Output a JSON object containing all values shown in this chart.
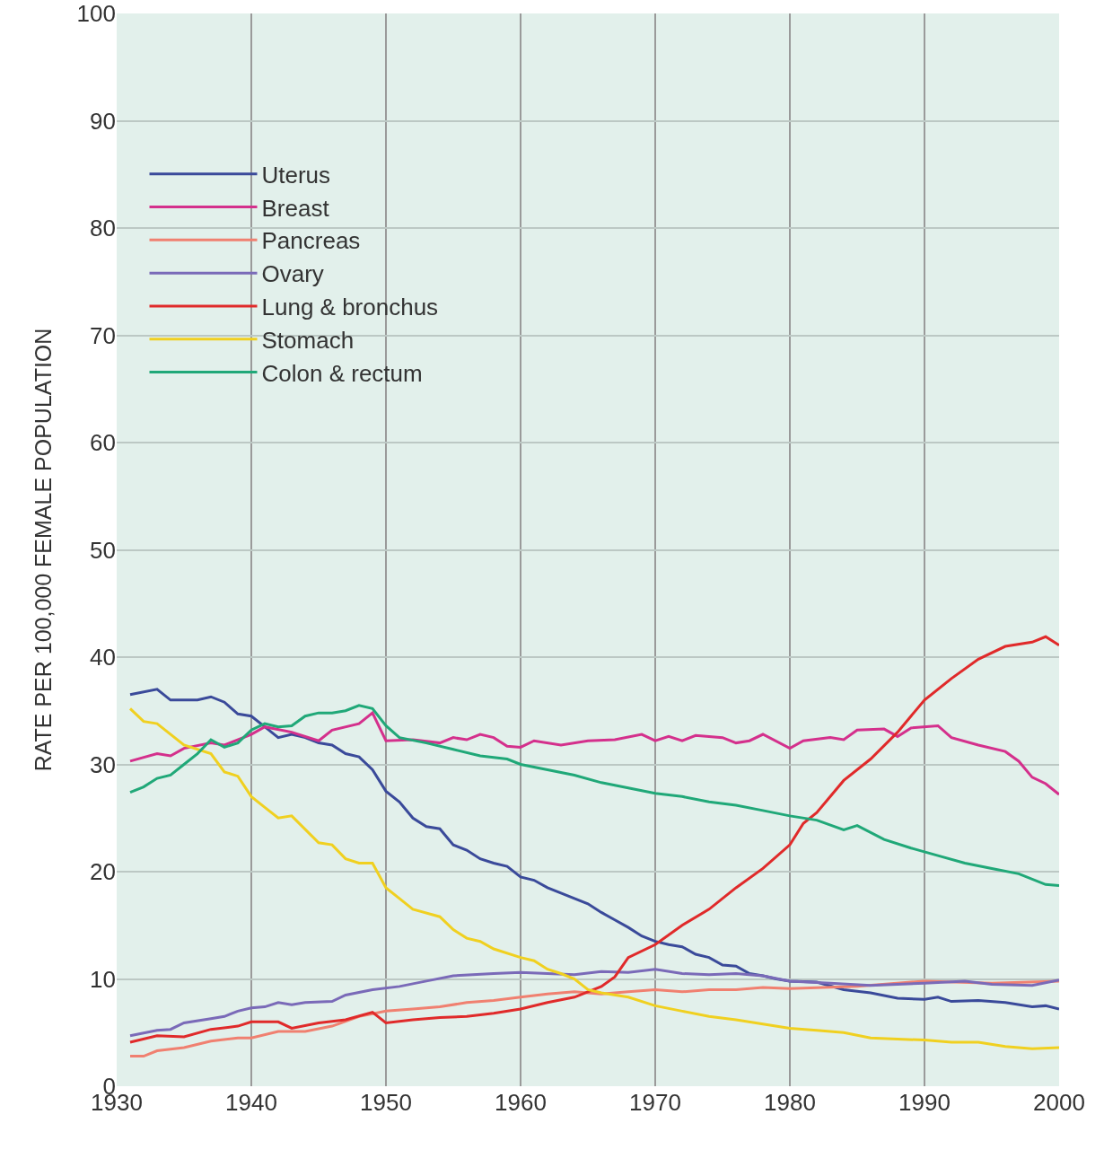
{
  "chart_data": {
    "type": "line",
    "ylabel": "RATE PER 100,000 FEMALE POPULATION",
    "xlim": [
      1930,
      2000
    ],
    "ylim": [
      0,
      100
    ],
    "xticks": [
      1930,
      1940,
      1950,
      1960,
      1970,
      1980,
      1990,
      2000
    ],
    "yticks": [
      0,
      10,
      20,
      30,
      40,
      50,
      60,
      70,
      80,
      90,
      100
    ],
    "grid": true,
    "legend": "top left",
    "marker": "none",
    "line_style": "solid",
    "series": [
      {
        "name": "Uterus",
        "color": "#3a4a9a",
        "x": [
          1931,
          1933,
          1934,
          1936,
          1937,
          1938,
          1939,
          1940,
          1941,
          1942,
          1943,
          1944,
          1945,
          1946,
          1947,
          1948,
          1949,
          1950,
          1951,
          1952,
          1953,
          1954,
          1955,
          1956,
          1957,
          1958,
          1959,
          1960,
          1961,
          1962,
          1963,
          1964,
          1965,
          1966,
          1967,
          1968,
          1969,
          1970,
          1971,
          1972,
          1973,
          1974,
          1975,
          1976,
          1977,
          1978,
          1979,
          1980,
          1982,
          1984,
          1986,
          1988,
          1990,
          1991,
          1992,
          1994,
          1996,
          1998,
          1999,
          2000
        ],
        "values": [
          36.5,
          37,
          36,
          36,
          36.3,
          35.8,
          34.7,
          34.5,
          33.5,
          32.5,
          32.8,
          32.5,
          32,
          31.8,
          31,
          30.7,
          29.5,
          27.5,
          26.5,
          25,
          24.2,
          24,
          22.5,
          22,
          21.2,
          20.8,
          20.5,
          19.5,
          19.2,
          18.5,
          18,
          17.5,
          17,
          16.2,
          15.5,
          14.8,
          14,
          13.5,
          13.2,
          13,
          12.3,
          12,
          11.3,
          11.2,
          10.5,
          10.3,
          10,
          9.8,
          9.7,
          9,
          8.7,
          8.2,
          8.1,
          8.3,
          7.9,
          8,
          7.8,
          7.4,
          7.5,
          7.2
        ]
      },
      {
        "name": "Breast",
        "color": "#d4308c",
        "x": [
          1931,
          1933,
          1934,
          1935,
          1937,
          1938,
          1940,
          1941,
          1943,
          1945,
          1946,
          1948,
          1949,
          1950,
          1952,
          1954,
          1955,
          1956,
          1957,
          1958,
          1959,
          1960,
          1961,
          1963,
          1965,
          1967,
          1969,
          1970,
          1971,
          1972,
          1973,
          1975,
          1976,
          1977,
          1978,
          1980,
          1981,
          1983,
          1984,
          1985,
          1987,
          1988,
          1989,
          1991,
          1992,
          1994,
          1996,
          1997,
          1998,
          1999,
          2000
        ],
        "values": [
          30.3,
          31,
          30.8,
          31.5,
          32,
          31.8,
          32.8,
          33.5,
          33,
          32.2,
          33.2,
          33.8,
          34.8,
          32.2,
          32.3,
          32,
          32.5,
          32.3,
          32.8,
          32.5,
          31.7,
          31.6,
          32.2,
          31.8,
          32.2,
          32.3,
          32.8,
          32.2,
          32.6,
          32.2,
          32.7,
          32.5,
          32,
          32.2,
          32.8,
          31.5,
          32.2,
          32.5,
          32.3,
          33.2,
          33.3,
          32.6,
          33.4,
          33.6,
          32.5,
          31.8,
          31.2,
          30.3,
          28.8,
          28.2,
          27.2
        ]
      },
      {
        "name": "Pancreas",
        "color": "#f08070",
        "x": [
          1931,
          1932,
          1933,
          1935,
          1937,
          1939,
          1940,
          1942,
          1944,
          1946,
          1948,
          1950,
          1952,
          1954,
          1956,
          1958,
          1960,
          1962,
          1964,
          1966,
          1968,
          1970,
          1972,
          1974,
          1976,
          1978,
          1980,
          1985,
          1990,
          1995,
          2000
        ],
        "values": [
          2.8,
          2.8,
          3.3,
          3.6,
          4.2,
          4.5,
          4.5,
          5.1,
          5.1,
          5.6,
          6.5,
          7.0,
          7.2,
          7.4,
          7.8,
          8.0,
          8.3,
          8.6,
          8.8,
          8.6,
          8.8,
          9.0,
          8.8,
          9.0,
          9.0,
          9.2,
          9.1,
          9.3,
          9.8,
          9.6,
          9.8
        ]
      },
      {
        "name": "Ovary",
        "color": "#7a6ab8",
        "x": [
          1931,
          1933,
          1934,
          1935,
          1937,
          1938,
          1939,
          1940,
          1941,
          1942,
          1943,
          1944,
          1946,
          1947,
          1949,
          1951,
          1953,
          1955,
          1958,
          1960,
          1962,
          1964,
          1966,
          1968,
          1970,
          1972,
          1974,
          1976,
          1978,
          1980,
          1983,
          1986,
          1990,
          1993,
          1995,
          1998,
          2000
        ],
        "values": [
          4.7,
          5.2,
          5.3,
          5.9,
          6.3,
          6.5,
          7.0,
          7.3,
          7.4,
          7.8,
          7.6,
          7.8,
          7.9,
          8.5,
          9.0,
          9.3,
          9.8,
          10.3,
          10.5,
          10.6,
          10.5,
          10.4,
          10.7,
          10.6,
          10.9,
          10.5,
          10.4,
          10.5,
          10.3,
          9.8,
          9.6,
          9.4,
          9.6,
          9.8,
          9.5,
          9.4,
          9.9
        ]
      },
      {
        "name": "Lung & bronchus",
        "color": "#e02a2a",
        "x": [
          1931,
          1933,
          1935,
          1937,
          1939,
          1940,
          1942,
          1943,
          1945,
          1947,
          1949,
          1950,
          1952,
          1954,
          1956,
          1958,
          1960,
          1962,
          1964,
          1966,
          1967,
          1968,
          1970,
          1972,
          1974,
          1976,
          1978,
          1980,
          1981,
          1982,
          1984,
          1986,
          1988,
          1990,
          1992,
          1994,
          1996,
          1998,
          1999,
          2000
        ],
        "values": [
          4.1,
          4.7,
          4.6,
          5.3,
          5.6,
          6.0,
          6.0,
          5.4,
          5.9,
          6.2,
          6.9,
          5.9,
          6.2,
          6.4,
          6.5,
          6.8,
          7.2,
          7.8,
          8.3,
          9.3,
          10.2,
          12.0,
          13.2,
          15.0,
          16.5,
          18.5,
          20.3,
          22.5,
          24.5,
          25.5,
          28.5,
          30.5,
          33.0,
          36.0,
          38.0,
          39.8,
          41.0,
          41.4,
          41.9,
          41.1
        ]
      },
      {
        "name": "Stomach",
        "color": "#f0d020",
        "x": [
          1931,
          1932,
          1933,
          1935,
          1937,
          1938,
          1939,
          1940,
          1941,
          1942,
          1943,
          1945,
          1946,
          1947,
          1948,
          1949,
          1950,
          1951,
          1952,
          1954,
          1955,
          1956,
          1957,
          1958,
          1960,
          1961,
          1962,
          1963,
          1964,
          1965,
          1966,
          1968,
          1970,
          1972,
          1974,
          1976,
          1978,
          1980,
          1982,
          1984,
          1986,
          1988,
          1990,
          1992,
          1994,
          1996,
          1998,
          2000
        ],
        "values": [
          35.2,
          34,
          33.8,
          31.8,
          31,
          29.3,
          28.9,
          27,
          26,
          25,
          25.2,
          22.7,
          22.5,
          21.2,
          20.8,
          20.8,
          18.5,
          17.5,
          16.5,
          15.8,
          14.6,
          13.8,
          13.5,
          12.8,
          12,
          11.7,
          10.9,
          10.5,
          10,
          9.0,
          8.7,
          8.3,
          7.5,
          7.0,
          6.5,
          6.2,
          5.8,
          5.4,
          5.2,
          5.0,
          4.5,
          4.4,
          4.3,
          4.1,
          4.1,
          3.7,
          3.5,
          3.6
        ]
      },
      {
        "name": "Colon & rectum",
        "color": "#20a878",
        "x": [
          1931,
          1932,
          1933,
          1934,
          1935,
          1936,
          1937,
          1938,
          1939,
          1940,
          1941,
          1942,
          1943,
          1944,
          1945,
          1946,
          1947,
          1948,
          1949,
          1950,
          1951,
          1953,
          1955,
          1957,
          1959,
          1960,
          1962,
          1964,
          1966,
          1968,
          1970,
          1972,
          1974,
          1976,
          1978,
          1980,
          1982,
          1984,
          1985,
          1987,
          1989,
          1991,
          1993,
          1995,
          1997,
          1999,
          2000
        ],
        "values": [
          27.4,
          27.9,
          28.7,
          29,
          30,
          31,
          32.3,
          31.6,
          32,
          33.2,
          33.8,
          33.5,
          33.6,
          34.5,
          34.8,
          34.8,
          35.0,
          35.5,
          35.2,
          33.6,
          32.5,
          32,
          31.4,
          30.8,
          30.5,
          30,
          29.5,
          29,
          28.3,
          27.8,
          27.3,
          27,
          26.5,
          26.2,
          25.7,
          25.2,
          24.8,
          23.9,
          24.3,
          23,
          22.2,
          21.5,
          20.8,
          20.3,
          19.8,
          18.8,
          18.7
        ]
      }
    ]
  }
}
